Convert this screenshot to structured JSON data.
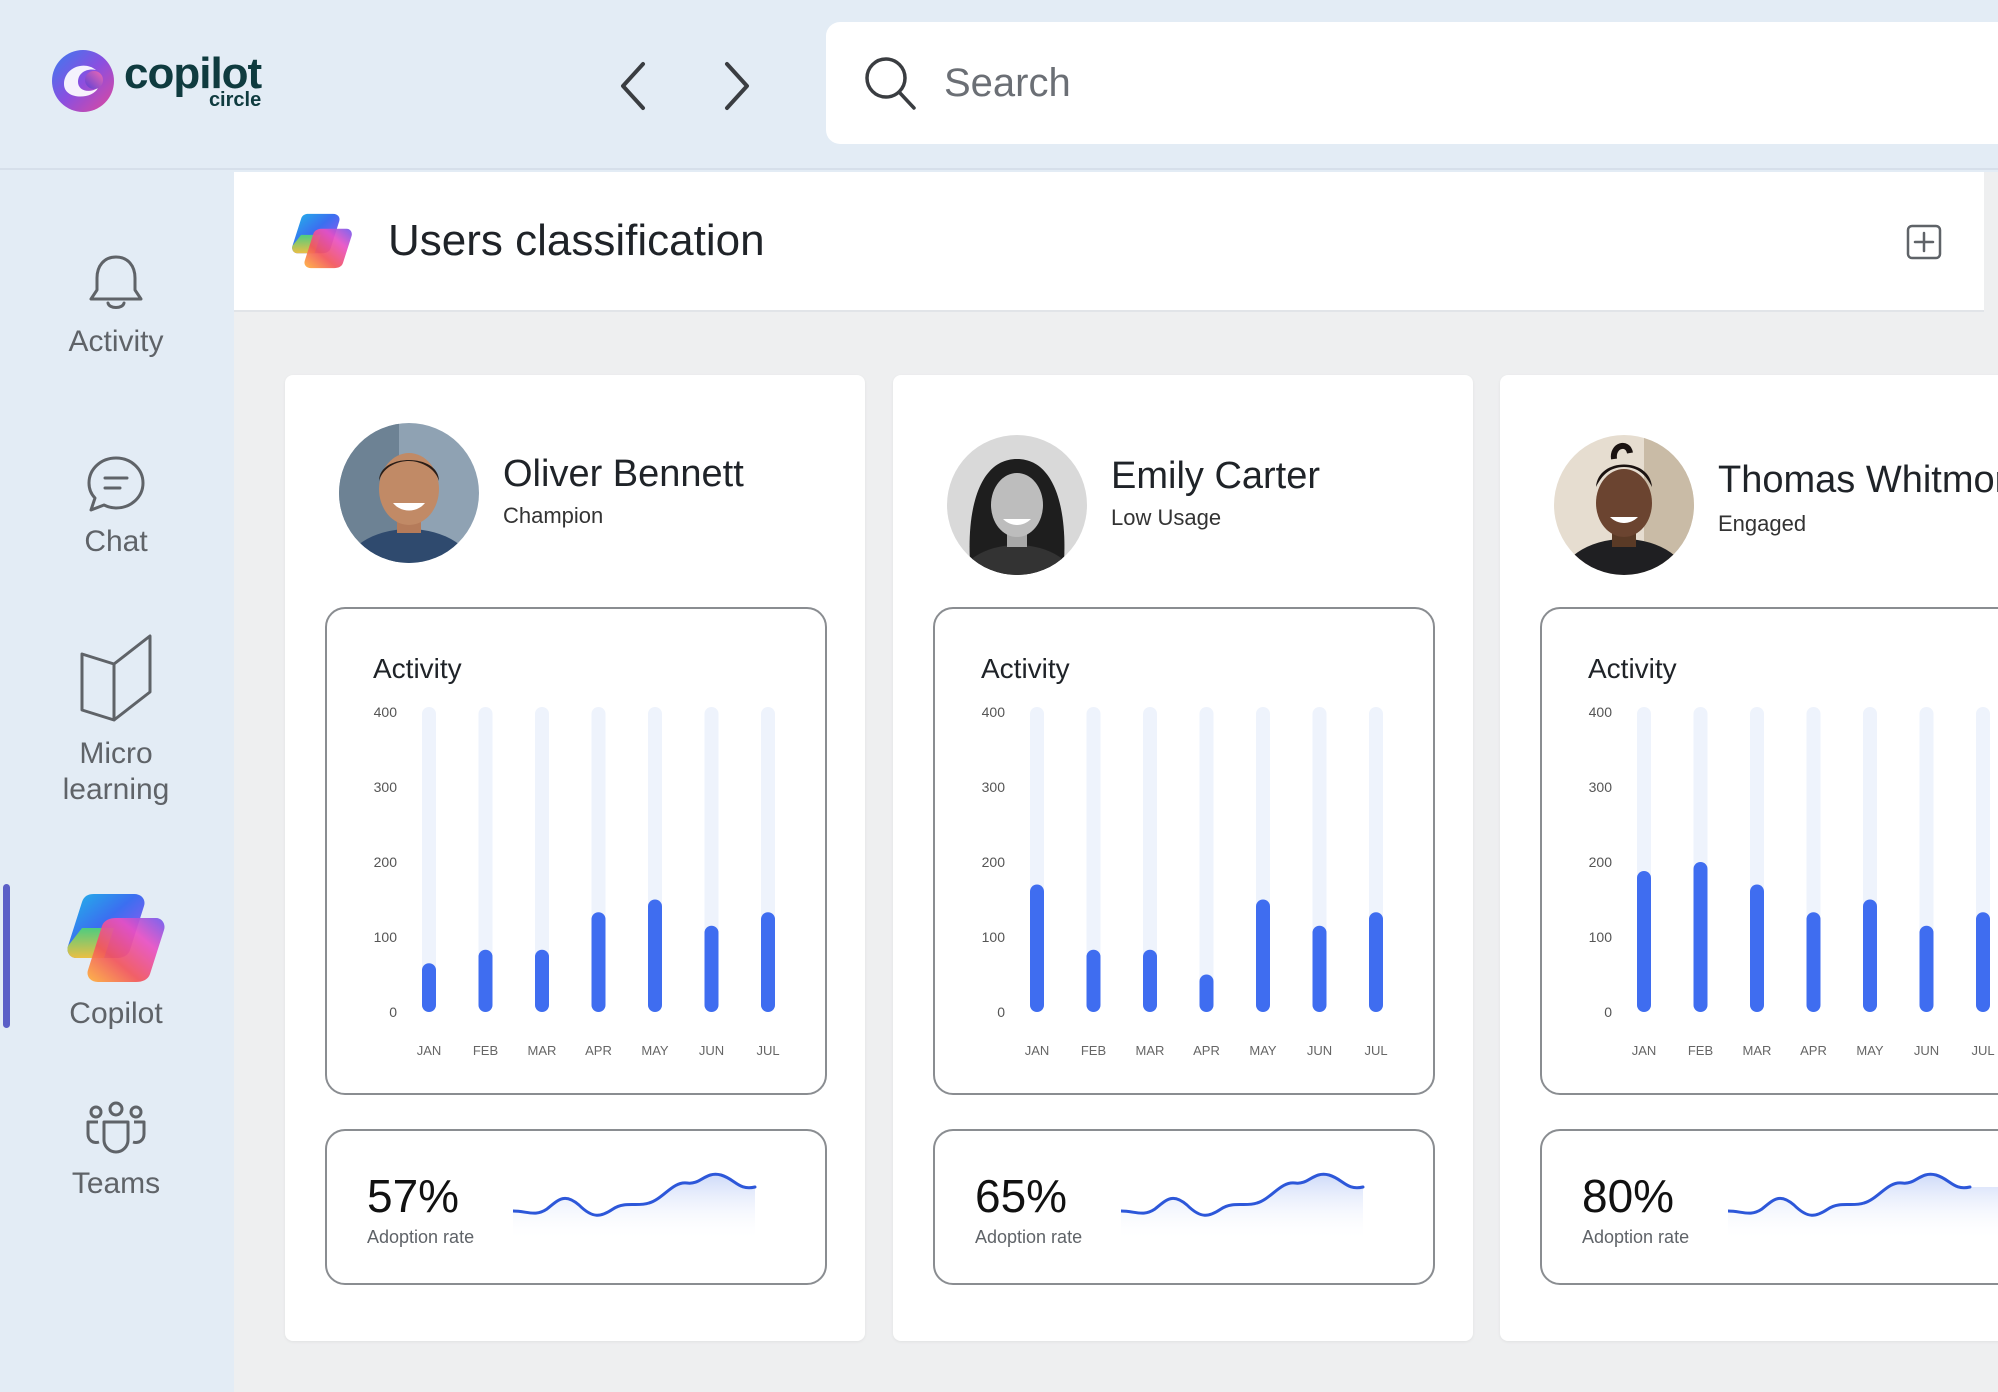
{
  "app": {
    "logo_name": "copilot",
    "logo_sub": "circle"
  },
  "search": {
    "placeholder": "Search"
  },
  "sidebar": {
    "items": [
      {
        "label": "Activity",
        "icon": "bell-icon"
      },
      {
        "label": "Chat",
        "icon": "chat-icon"
      },
      {
        "label": "Micro learning",
        "icon": "book-icon"
      },
      {
        "label": "Copilot",
        "icon": "copilot-icon",
        "active": true
      },
      {
        "label": "Teams",
        "icon": "teams-icon"
      }
    ]
  },
  "page": {
    "title": "Users classification"
  },
  "colors": {
    "bar": "#3f6df0",
    "bar_track": "#eef3fc",
    "spark": "#2d57d9",
    "active": "#5b5fc7"
  },
  "users": [
    {
      "name": "Oliver Bennett",
      "role": "Champion",
      "activity_title": "Activity",
      "adoption": "57%",
      "adoption_label": "Adoption rate",
      "chart_data": {
        "type": "bar",
        "title": "Activity",
        "categories": [
          "JAN",
          "FEB",
          "MAR",
          "APR",
          "MAY",
          "JUN",
          "JUL"
        ],
        "values": [
          65,
          83,
          83,
          133,
          150,
          115,
          133
        ],
        "yticks": [
          0,
          100,
          200,
          300,
          400
        ],
        "ylim": [
          0,
          400
        ]
      }
    },
    {
      "name": "Emily Carter",
      "role": "Low Usage",
      "activity_title": "Activity",
      "adoption": "65%",
      "adoption_label": "Adoption rate",
      "chart_data": {
        "type": "bar",
        "title": "Activity",
        "categories": [
          "JAN",
          "FEB",
          "MAR",
          "APR",
          "MAY",
          "JUN",
          "JUL"
        ],
        "values": [
          170,
          83,
          83,
          50,
          150,
          115,
          133
        ],
        "yticks": [
          0,
          100,
          200,
          300,
          400
        ],
        "ylim": [
          0,
          400
        ]
      }
    },
    {
      "name": "Thomas Whitmore",
      "role": "Engaged",
      "activity_title": "Activity",
      "adoption": "80%",
      "adoption_label": "Adoption rate",
      "chart_data": {
        "type": "bar",
        "title": "Activity",
        "categories": [
          "JAN",
          "FEB",
          "MAR",
          "APR",
          "MAY",
          "JUN",
          "JUL"
        ],
        "values": [
          188,
          200,
          170,
          133,
          150,
          115,
          133
        ],
        "yticks": [
          0,
          100,
          200,
          300,
          400
        ],
        "ylim": [
          0,
          400
        ]
      }
    }
  ]
}
